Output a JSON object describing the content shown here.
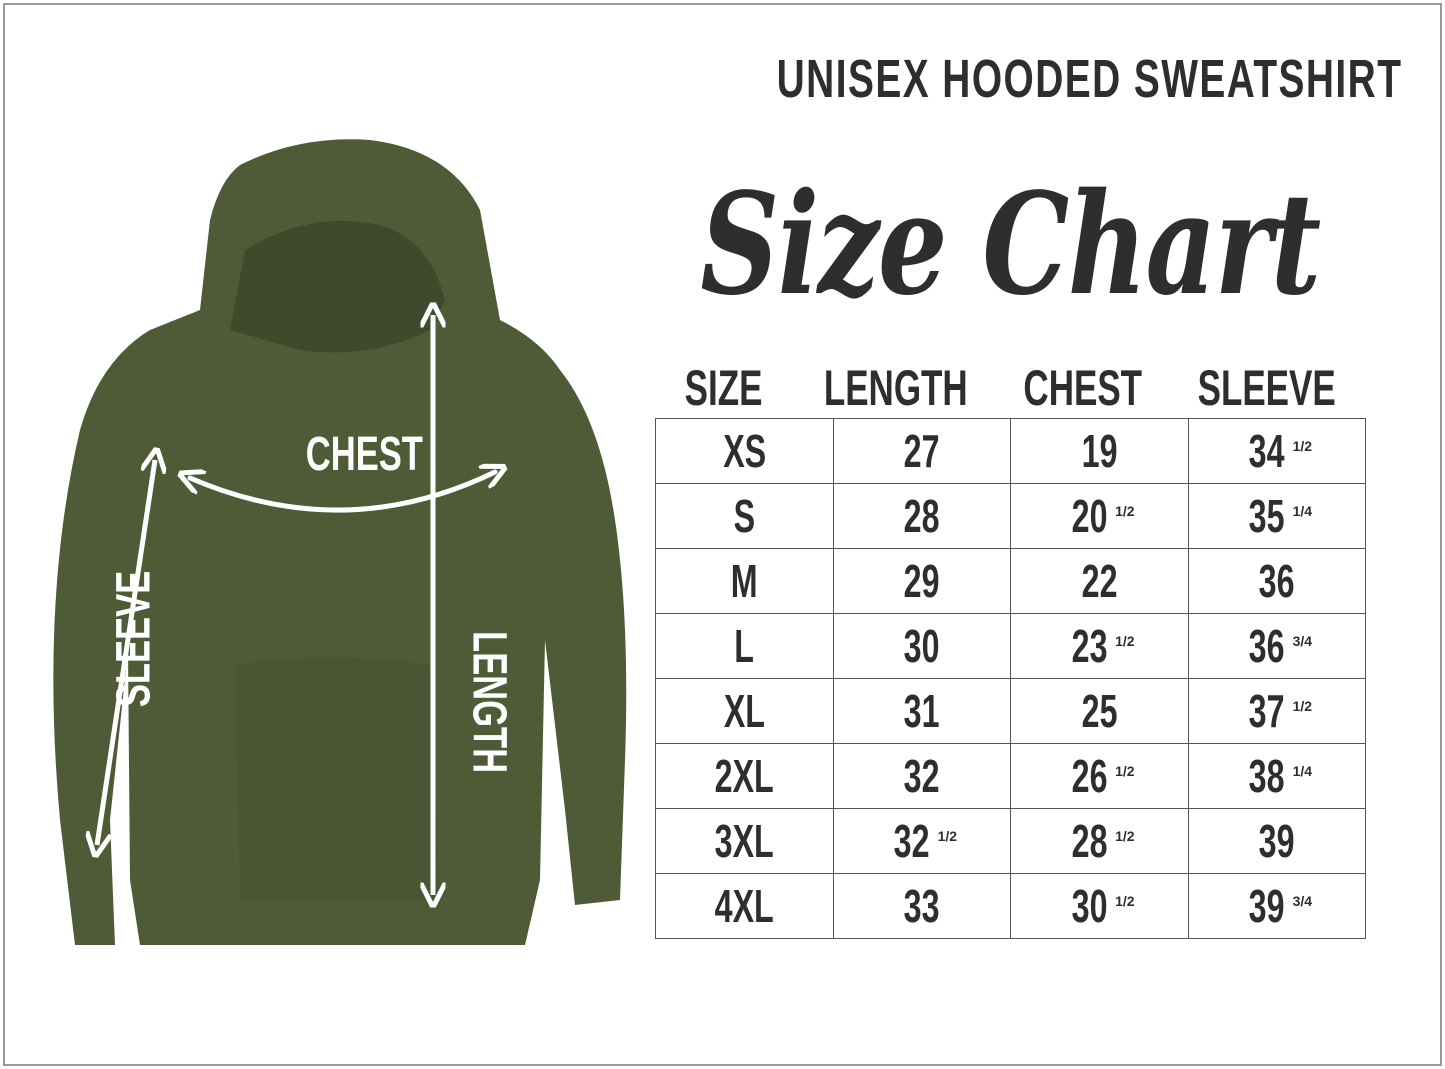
{
  "heading": "UNISEX HOODED SWEATSHIRT",
  "script_title": "Size Chart",
  "colors": {
    "garment": "#4f5b37",
    "text": "#2e2e2e",
    "arrow": "#ffffff"
  },
  "garment_labels": {
    "chest": "CHEST",
    "length": "LENGTH",
    "sleeve": "SLEEVE"
  },
  "table": {
    "headers": [
      "SIZE",
      "LENGTH",
      "CHEST",
      "SLEEVE"
    ],
    "rows": [
      [
        {
          "v": "XS"
        },
        {
          "v": "27"
        },
        {
          "v": "19"
        },
        {
          "v": "34",
          "f": "1/2"
        }
      ],
      [
        {
          "v": "S"
        },
        {
          "v": "28"
        },
        {
          "v": "20",
          "f": "1/2"
        },
        {
          "v": "35",
          "f": "1/4"
        }
      ],
      [
        {
          "v": "M"
        },
        {
          "v": "29"
        },
        {
          "v": "22"
        },
        {
          "v": "36"
        }
      ],
      [
        {
          "v": "L"
        },
        {
          "v": "30"
        },
        {
          "v": "23",
          "f": "1/2"
        },
        {
          "v": "36",
          "f": "3/4"
        }
      ],
      [
        {
          "v": "XL"
        },
        {
          "v": "31"
        },
        {
          "v": "25"
        },
        {
          "v": "37",
          "f": "1/2"
        }
      ],
      [
        {
          "v": "2XL"
        },
        {
          "v": "32"
        },
        {
          "v": "26",
          "f": "1/2"
        },
        {
          "v": "38",
          "f": "1/4"
        }
      ],
      [
        {
          "v": "3XL"
        },
        {
          "v": "32",
          "f": "1/2"
        },
        {
          "v": "28",
          "f": "1/2"
        },
        {
          "v": "39"
        }
      ],
      [
        {
          "v": "4XL"
        },
        {
          "v": "33"
        },
        {
          "v": "30",
          "f": "1/2"
        },
        {
          "v": "39",
          "f": "3/4"
        }
      ]
    ]
  }
}
